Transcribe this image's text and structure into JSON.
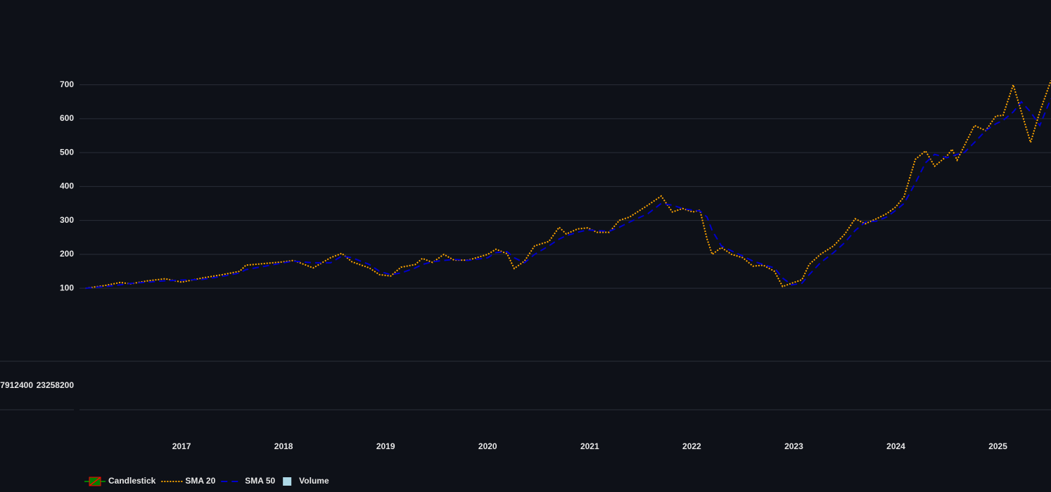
{
  "chart_data": {
    "type": "line",
    "x": [
      2016.06,
      2016.25,
      2016.4,
      2016.5,
      2016.67,
      2016.84,
      2017.0,
      2017.2,
      2017.4,
      2017.57,
      2017.63,
      2018.0,
      2018.1,
      2018.29,
      2018.46,
      2018.57,
      2018.67,
      2018.84,
      2018.94,
      2019.05,
      2019.15,
      2019.29,
      2019.36,
      2019.46,
      2019.57,
      2019.67,
      2019.81,
      2020.0,
      2020.08,
      2020.19,
      2020.26,
      2020.36,
      2020.46,
      2020.6,
      2020.7,
      2020.77,
      2020.88,
      2020.98,
      2021.07,
      2021.19,
      2021.29,
      2021.39,
      2021.57,
      2021.7,
      2021.81,
      2021.91,
      2022.01,
      2022.08,
      2022.15,
      2022.2,
      2022.29,
      2022.39,
      2022.5,
      2022.6,
      2022.7,
      2022.81,
      2022.89,
      2022.98,
      2023.08,
      2023.15,
      2023.26,
      2023.39,
      2023.5,
      2023.6,
      2023.7,
      2023.81,
      2023.91,
      2024.0,
      2024.08,
      2024.19,
      2024.29,
      2024.38,
      2024.5,
      2024.55,
      2024.6,
      2024.67,
      2024.77,
      2024.88,
      2024.98,
      2025.05,
      2025.15,
      2025.23,
      2025.32,
      2025.41,
      2025.52
    ],
    "series": [
      {
        "name": "Candlestick",
        "type": "candlestick",
        "colors": [
          "#008000",
          "#ff0000"
        ]
      },
      {
        "name": "SMA 20",
        "type": "line",
        "color": "#ffa500",
        "dash": "dot",
        "values": [
          100,
          108,
          117,
          113,
          122,
          128,
          118,
          130,
          140,
          150,
          168,
          178,
          182,
          160,
          190,
          203,
          178,
          160,
          140,
          136,
          162,
          170,
          188,
          176,
          200,
          183,
          183,
          200,
          215,
          202,
          158,
          180,
          225,
          238,
          280,
          260,
          275,
          278,
          265,
          265,
          300,
          310,
          345,
          372,
          325,
          335,
          325,
          330,
          245,
          200,
          220,
          200,
          190,
          165,
          168,
          150,
          105,
          115,
          125,
          170,
          200,
          225,
          260,
          305,
          290,
          305,
          320,
          340,
          370,
          480,
          505,
          460,
          490,
          510,
          478,
          520,
          580,
          565,
          608,
          610,
          700,
          620,
          530,
          620,
          713
        ]
      },
      {
        "name": "SMA 50",
        "type": "line",
        "color": "#0000cd",
        "dash": "dash",
        "values": [
          100,
          105,
          110,
          114,
          118,
          122,
          124,
          126,
          135,
          145,
          155,
          175,
          180,
          175,
          175,
          195,
          190,
          170,
          150,
          140,
          145,
          160,
          170,
          178,
          182,
          185,
          182,
          190,
          205,
          208,
          190,
          175,
          200,
          225,
          245,
          255,
          265,
          272,
          270,
          268,
          280,
          295,
          320,
          350,
          345,
          335,
          330,
          328,
          310,
          270,
          225,
          210,
          195,
          180,
          170,
          160,
          130,
          110,
          115,
          140,
          175,
          205,
          235,
          270,
          295,
          298,
          310,
          330,
          350,
          410,
          470,
          495,
          485,
          490,
          495,
          500,
          530,
          565,
          585,
          595,
          620,
          650,
          620,
          580,
          660
        ]
      },
      {
        "name": "Volume",
        "type": "bar",
        "color": "#add8e6"
      }
    ],
    "xlim": [
      2016,
      2025.52
    ],
    "xticks": [
      2017,
      2018,
      2019,
      2020,
      2021,
      2022,
      2023,
      2024,
      2025
    ],
    "ylim": [
      38,
      747
    ],
    "yticks": [
      100,
      200,
      300,
      400,
      500,
      600,
      700
    ],
    "volume_yticks": [
      7912400,
      23258200
    ],
    "grid": true,
    "legend": "bottom-left"
  }
}
